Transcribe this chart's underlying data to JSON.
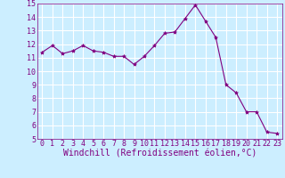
{
  "x": [
    0,
    1,
    2,
    3,
    4,
    5,
    6,
    7,
    8,
    9,
    10,
    11,
    12,
    13,
    14,
    15,
    16,
    17,
    18,
    19,
    20,
    21,
    22,
    23
  ],
  "y": [
    11.4,
    11.9,
    11.3,
    11.5,
    11.9,
    11.5,
    11.4,
    11.1,
    11.1,
    10.5,
    11.1,
    11.9,
    12.8,
    12.9,
    13.9,
    14.9,
    13.7,
    12.5,
    9.0,
    8.4,
    7.0,
    7.0,
    5.5,
    5.4
  ],
  "line_color": "#800080",
  "marker": "*",
  "marker_size": 3,
  "xlabel": "Windchill (Refroidissement éolien,°C)",
  "ylim": [
    5,
    15
  ],
  "yticks": [
    5,
    6,
    7,
    8,
    9,
    10,
    11,
    12,
    13,
    14,
    15
  ],
  "xticks": [
    0,
    1,
    2,
    3,
    4,
    5,
    6,
    7,
    8,
    9,
    10,
    11,
    12,
    13,
    14,
    15,
    16,
    17,
    18,
    19,
    20,
    21,
    22,
    23
  ],
  "bg_color": "#cceeff",
  "grid_color": "#ffffff",
  "tick_label_fontsize": 6,
  "xlabel_fontsize": 7
}
